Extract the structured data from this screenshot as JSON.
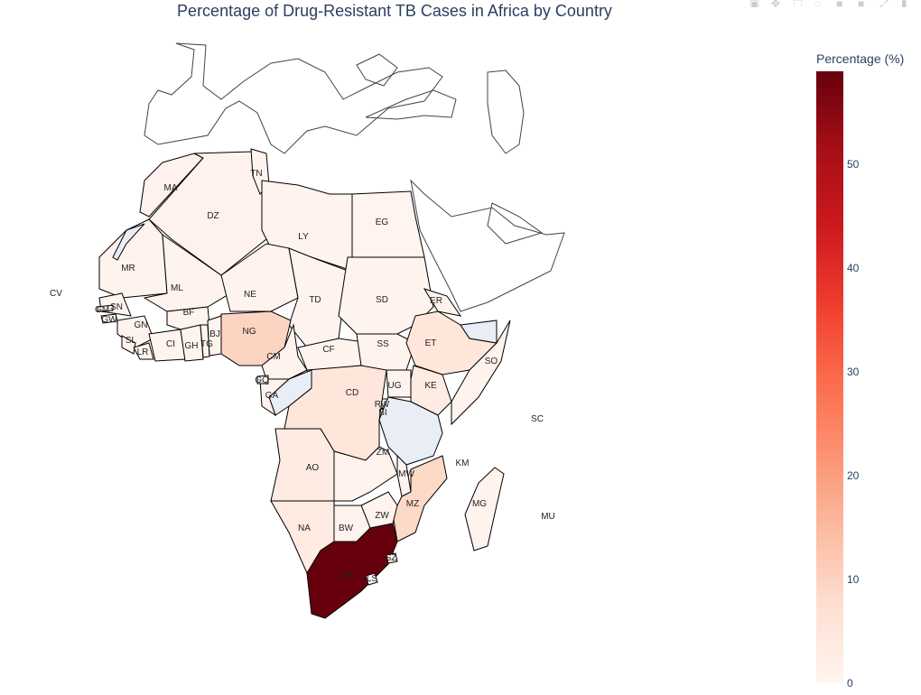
{
  "title": "Percentage of Drug-Resistant TB Cases in Africa by Country",
  "colorbar": {
    "title": "Percentage (%)",
    "ticks": [
      "0",
      "10",
      "20",
      "30",
      "40",
      "50"
    ],
    "range": [
      0,
      58
    ],
    "colorscale": "Reds"
  },
  "modebar": {
    "icons": [
      "camera-icon",
      "pan-icon",
      "box-select-icon",
      "lasso-icon",
      "zoom-in-icon",
      "zoom-out-icon",
      "autoscale-icon",
      "plotly-logo-icon"
    ]
  },
  "chart_data": {
    "type": "choropleth",
    "scope": "africa",
    "colorscale": "Reds",
    "zrange": [
      0,
      58
    ],
    "countries": [
      {
        "code": "MA",
        "value": 1
      },
      {
        "code": "DZ",
        "value": 1
      },
      {
        "code": "TN",
        "value": 1
      },
      {
        "code": "LY",
        "value": 1
      },
      {
        "code": "EG",
        "value": 1
      },
      {
        "code": "MR",
        "value": 1
      },
      {
        "code": "ML",
        "value": 1
      },
      {
        "code": "NE",
        "value": 1
      },
      {
        "code": "TD",
        "value": 1
      },
      {
        "code": "SD",
        "value": 1
      },
      {
        "code": "ER",
        "value": 1
      },
      {
        "code": "CV",
        "value": 1
      },
      {
        "code": "SN",
        "value": 1
      },
      {
        "code": "GM",
        "value": 1
      },
      {
        "code": "GW",
        "value": 1
      },
      {
        "code": "GN",
        "value": 1
      },
      {
        "code": "SL",
        "value": 1
      },
      {
        "code": "LR",
        "value": 1
      },
      {
        "code": "CI",
        "value": 1
      },
      {
        "code": "BF",
        "value": 1
      },
      {
        "code": "GH",
        "value": 1
      },
      {
        "code": "TG",
        "value": 1
      },
      {
        "code": "BJ",
        "value": 1
      },
      {
        "code": "NG",
        "value": 8
      },
      {
        "code": "CM",
        "value": 1
      },
      {
        "code": "CF",
        "value": 1
      },
      {
        "code": "SS",
        "value": 1
      },
      {
        "code": "ET",
        "value": 3
      },
      {
        "code": "SO",
        "value": 1
      },
      {
        "code": "KE",
        "value": 2
      },
      {
        "code": "UG",
        "value": 1
      },
      {
        "code": "RW",
        "value": 1
      },
      {
        "code": "BI",
        "value": 1
      },
      {
        "code": "CD",
        "value": 3
      },
      {
        "code": "GQ",
        "value": 1
      },
      {
        "code": "GA",
        "value": 1
      },
      {
        "code": "AO",
        "value": 2
      },
      {
        "code": "ZM",
        "value": 1
      },
      {
        "code": "MW",
        "value": 1
      },
      {
        "code": "MZ",
        "value": 5
      },
      {
        "code": "ZW",
        "value": 1
      },
      {
        "code": "NA",
        "value": 2
      },
      {
        "code": "BW",
        "value": 1
      },
      {
        "code": "ZA",
        "value": 58
      },
      {
        "code": "LS",
        "value": 1
      },
      {
        "code": "SZ",
        "value": 1
      },
      {
        "code": "MG",
        "value": 1
      },
      {
        "code": "KM",
        "value": 1
      },
      {
        "code": "SC",
        "value": 1
      },
      {
        "code": "MU",
        "value": 1
      }
    ]
  }
}
